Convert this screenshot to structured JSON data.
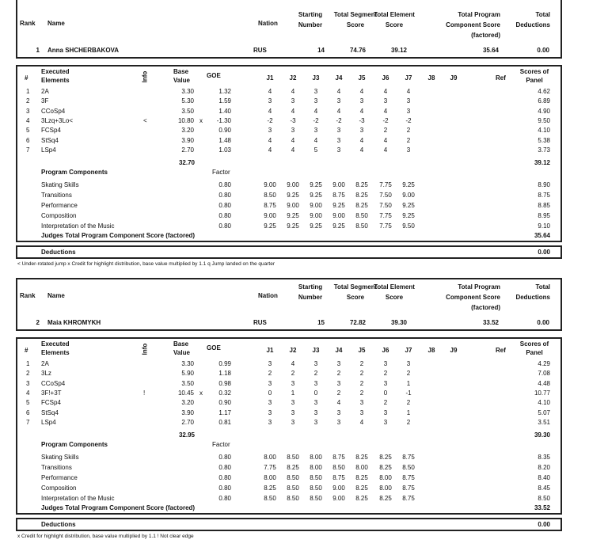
{
  "headers": {
    "rank": "Rank",
    "name": "Name",
    "nation": "Nation",
    "starting_number": "Starting Number",
    "tss": "Total Segment Score",
    "tes": "Total Element Score",
    "tpcs": "Total Program Component Score (factored)",
    "deductions": "Total Deductions"
  },
  "table_headers": {
    "num": "#",
    "elements": "Executed Elements",
    "info": "Info",
    "base": "Base Value",
    "goe": "GOE",
    "judges": [
      "J1",
      "J2",
      "J3",
      "J4",
      "J5",
      "J6",
      "J7",
      "J8",
      "J9"
    ],
    "ref": "Ref",
    "panel": "Scores of Panel",
    "program_components": "Program Components",
    "factor": "Factor",
    "judges_total": "Judges Total Program Component Score (factored)",
    "deductions": "Deductions"
  },
  "skaters": [
    {
      "rank": "1",
      "name": "Anna SHCHERBAKOVA",
      "nation": "RUS",
      "starting_number": "14",
      "tss": "74.76",
      "tes": "39.12",
      "tpcs": "35.64",
      "deductions": "0.00",
      "elements": [
        {
          "n": "1",
          "el": "2A",
          "info": "",
          "base": "3.30",
          "x": "",
          "goe": "1.32",
          "j": [
            "4",
            "4",
            "3",
            "4",
            "4",
            "4",
            "4"
          ],
          "panel": "4.62"
        },
        {
          "n": "2",
          "el": "3F",
          "info": "",
          "base": "5.30",
          "x": "",
          "goe": "1.59",
          "j": [
            "3",
            "3",
            "3",
            "3",
            "3",
            "3",
            "3"
          ],
          "panel": "6.89"
        },
        {
          "n": "3",
          "el": "CCoSp4",
          "info": "",
          "base": "3.50",
          "x": "",
          "goe": "1.40",
          "j": [
            "4",
            "4",
            "4",
            "4",
            "4",
            "4",
            "3"
          ],
          "panel": "4.90"
        },
        {
          "n": "4",
          "el": "3Lzq+3Lo<",
          "info": "<",
          "base": "10.80",
          "x": "x",
          "goe": "-1.30",
          "j": [
            "-2",
            "-3",
            "-2",
            "-2",
            "-3",
            "-2",
            "-2"
          ],
          "panel": "9.50"
        },
        {
          "n": "5",
          "el": "FCSp4",
          "info": "",
          "base": "3.20",
          "x": "",
          "goe": "0.90",
          "j": [
            "3",
            "3",
            "3",
            "3",
            "3",
            "2",
            "2"
          ],
          "panel": "4.10"
        },
        {
          "n": "6",
          "el": "StSq4",
          "info": "",
          "base": "3.90",
          "x": "",
          "goe": "1.48",
          "j": [
            "4",
            "4",
            "4",
            "3",
            "4",
            "4",
            "2"
          ],
          "panel": "5.38"
        },
        {
          "n": "7",
          "el": "LSp4",
          "info": "",
          "base": "2.70",
          "x": "",
          "goe": "1.03",
          "j": [
            "4",
            "4",
            "5",
            "3",
            "4",
            "4",
            "3"
          ],
          "panel": "3.73"
        }
      ],
      "base_total": "32.70",
      "elements_total": "39.12",
      "components": [
        {
          "name": "Skating Skills",
          "factor": "0.80",
          "j": [
            "9.00",
            "9.00",
            "9.25",
            "9.00",
            "8.25",
            "7.75",
            "9.25"
          ],
          "panel": "8.90"
        },
        {
          "name": "Transitions",
          "factor": "0.80",
          "j": [
            "8.50",
            "9.25",
            "9.25",
            "8.75",
            "8.25",
            "7.50",
            "9.00"
          ],
          "panel": "8.75"
        },
        {
          "name": "Performance",
          "factor": "0.80",
          "j": [
            "8.75",
            "9.00",
            "9.00",
            "9.25",
            "8.25",
            "7.50",
            "9.25"
          ],
          "panel": "8.85"
        },
        {
          "name": "Composition",
          "factor": "0.80",
          "j": [
            "9.00",
            "9.25",
            "9.00",
            "9.00",
            "8.50",
            "7.75",
            "9.25"
          ],
          "panel": "8.95"
        },
        {
          "name": "Interpretation of the Music",
          "factor": "0.80",
          "j": [
            "9.25",
            "9.25",
            "9.25",
            "9.25",
            "8.50",
            "7.75",
            "9.50"
          ],
          "panel": "9.10"
        }
      ],
      "pcs_total": "35.64",
      "deductions_value": "0.00",
      "legend": "<  Under-rotated jump   x  Credit for highlight distribution, base value multiplied by 1.1   q  Jump landed on the quarter"
    },
    {
      "rank": "2",
      "name": "Maia KHROMYKH",
      "nation": "RUS",
      "starting_number": "15",
      "tss": "72.82",
      "tes": "39.30",
      "tpcs": "33.52",
      "deductions": "0.00",
      "elements": [
        {
          "n": "1",
          "el": "2A",
          "info": "",
          "base": "3.30",
          "x": "",
          "goe": "0.99",
          "j": [
            "3",
            "4",
            "3",
            "3",
            "2",
            "3",
            "3"
          ],
          "panel": "4.29"
        },
        {
          "n": "2",
          "el": "3Lz",
          "info": "",
          "base": "5.90",
          "x": "",
          "goe": "1.18",
          "j": [
            "2",
            "2",
            "2",
            "2",
            "2",
            "2",
            "2"
          ],
          "panel": "7.08"
        },
        {
          "n": "3",
          "el": "CCoSp4",
          "info": "",
          "base": "3.50",
          "x": "",
          "goe": "0.98",
          "j": [
            "3",
            "3",
            "3",
            "3",
            "2",
            "3",
            "1"
          ],
          "panel": "4.48"
        },
        {
          "n": "4",
          "el": "3F!+3T",
          "info": "!",
          "base": "10.45",
          "x": "x",
          "goe": "0.32",
          "j": [
            "0",
            "1",
            "0",
            "2",
            "2",
            "0",
            "-1"
          ],
          "panel": "10.77"
        },
        {
          "n": "5",
          "el": "FCSp4",
          "info": "",
          "base": "3.20",
          "x": "",
          "goe": "0.90",
          "j": [
            "3",
            "3",
            "3",
            "4",
            "3",
            "2",
            "2"
          ],
          "panel": "4.10"
        },
        {
          "n": "6",
          "el": "StSq4",
          "info": "",
          "base": "3.90",
          "x": "",
          "goe": "1.17",
          "j": [
            "3",
            "3",
            "3",
            "3",
            "3",
            "3",
            "1"
          ],
          "panel": "5.07"
        },
        {
          "n": "7",
          "el": "LSp4",
          "info": "",
          "base": "2.70",
          "x": "",
          "goe": "0.81",
          "j": [
            "3",
            "3",
            "3",
            "3",
            "4",
            "3",
            "2"
          ],
          "panel": "3.51"
        }
      ],
      "base_total": "32.95",
      "elements_total": "39.30",
      "components": [
        {
          "name": "Skating Skills",
          "factor": "0.80",
          "j": [
            "8.00",
            "8.50",
            "8.00",
            "8.75",
            "8.25",
            "8.25",
            "8.75"
          ],
          "panel": "8.35"
        },
        {
          "name": "Transitions",
          "factor": "0.80",
          "j": [
            "7.75",
            "8.25",
            "8.00",
            "8.50",
            "8.00",
            "8.25",
            "8.50"
          ],
          "panel": "8.20"
        },
        {
          "name": "Performance",
          "factor": "0.80",
          "j": [
            "8.00",
            "8.50",
            "8.50",
            "8.75",
            "8.25",
            "8.00",
            "8.75"
          ],
          "panel": "8.40"
        },
        {
          "name": "Composition",
          "factor": "0.80",
          "j": [
            "8.25",
            "8.50",
            "8.50",
            "9.00",
            "8.25",
            "8.00",
            "8.75"
          ],
          "panel": "8.45"
        },
        {
          "name": "Interpretation of the Music",
          "factor": "0.80",
          "j": [
            "8.50",
            "8.50",
            "8.50",
            "9.00",
            "8.25",
            "8.25",
            "8.75"
          ],
          "panel": "8.50"
        }
      ],
      "pcs_total": "33.52",
      "deductions_value": "0.00",
      "legend": "x  Credit for highlight distribution, base value multiplied by 1.1   !  Not clear edge"
    }
  ]
}
